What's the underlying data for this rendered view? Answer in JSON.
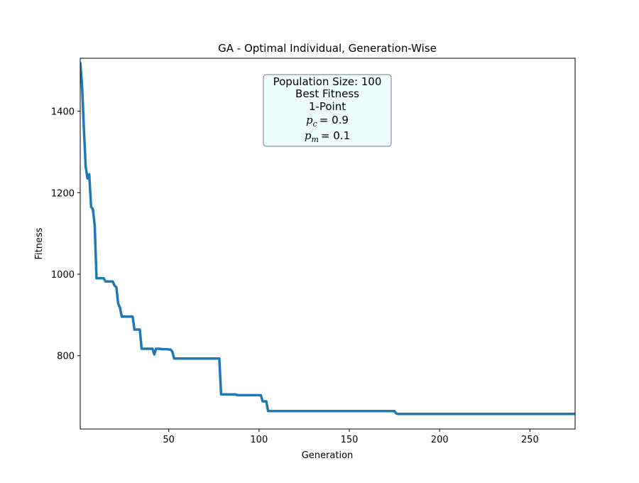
{
  "chart_data": {
    "type": "line",
    "title": "GA - Optimal Individual, Generation-Wise",
    "xlabel": "Generation",
    "ylabel": "Fitness",
    "xlim": [
      1,
      275
    ],
    "ylim": [
      620,
      1530
    ],
    "xticks": [
      50,
      100,
      150,
      200,
      250
    ],
    "yticks": [
      800,
      1000,
      1200,
      1400
    ],
    "grid": false,
    "line_color": "#1f77b4",
    "annotation": {
      "lines": [
        "Population Size: 100",
        "Best Fitness",
        "1-Point"
      ],
      "pc_symbol": "p",
      "pc_sub": "c",
      "pc_value": "= 0.9",
      "pm_symbol": "p",
      "pm_sub": "m",
      "pm_value": "= 0.1",
      "face_color": "#eefefe",
      "edge_color": "#6d7c7d"
    },
    "series": [
      {
        "x": [
          1,
          2,
          3,
          4,
          5,
          6,
          7,
          8,
          9,
          10,
          11,
          12,
          13,
          14,
          15,
          16,
          17,
          18,
          19,
          20,
          21,
          22,
          23,
          24,
          25,
          26,
          27,
          28,
          29,
          30,
          31,
          32,
          33,
          34,
          35,
          36,
          37,
          38,
          39,
          40,
          41,
          42,
          43,
          44,
          45,
          46,
          47,
          48,
          49,
          50,
          51,
          52,
          53,
          54,
          55,
          60,
          65,
          70,
          75,
          76,
          77,
          78,
          79,
          80,
          85,
          86,
          87,
          88,
          90,
          95,
          100,
          101,
          102,
          103,
          104,
          105,
          110,
          120,
          130,
          140,
          150,
          160,
          170,
          174,
          175,
          176,
          177,
          180,
          200,
          220,
          240,
          260,
          275
        ],
        "y": [
          1520,
          1465,
          1360,
          1265,
          1235,
          1245,
          1165,
          1160,
          1120,
          990,
          990,
          990,
          990,
          990,
          982,
          982,
          982,
          982,
          982,
          972,
          968,
          928,
          918,
          896,
          896,
          896,
          896,
          896,
          896,
          896,
          864,
          864,
          864,
          864,
          817,
          817,
          817,
          817,
          817,
          817,
          817,
          803,
          817,
          817,
          817,
          816,
          816,
          816,
          816,
          815,
          815,
          810,
          793,
          793,
          793,
          793,
          793,
          793,
          793,
          793,
          793,
          793,
          705,
          705,
          705,
          705,
          705,
          703,
          703,
          703,
          703,
          703,
          688,
          688,
          688,
          664,
          664,
          664,
          664,
          664,
          664,
          664,
          664,
          664,
          664,
          658,
          657,
          657,
          657,
          657,
          657,
          657,
          657
        ]
      }
    ]
  }
}
